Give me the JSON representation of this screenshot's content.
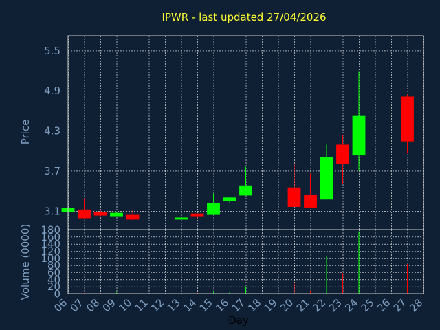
{
  "chart_data": {
    "type": "candlestick",
    "title": "IPWR - last updated 27/04/2026",
    "xlabel": "Day",
    "price_panel": {
      "ylabel": "Price",
      "ylim": [
        2.82,
        5.72
      ],
      "yticks": [
        "3.1",
        "3.7",
        "4.3",
        "4.9",
        "5.5"
      ],
      "grid": true
    },
    "volume_panel": {
      "ylabel": "Volume (0000)",
      "ylim": [
        0,
        180
      ],
      "yticks": [
        "0",
        "20",
        "40",
        "60",
        "80",
        "100",
        "120",
        "140",
        "160",
        "180"
      ],
      "grid": true
    },
    "x_range": [
      6,
      28
    ],
    "xticks": [
      "06",
      "07",
      "08",
      "09",
      "10",
      "11",
      "12",
      "13",
      "14",
      "15",
      "16",
      "17",
      "18",
      "19",
      "20",
      "21",
      "22",
      "23",
      "24",
      "25",
      "26",
      "27",
      "28"
    ],
    "colors": {
      "background": "#0f2035",
      "up": "#00ff00",
      "down": "#ff0000",
      "grid": "#ffffff",
      "title": "#ffff33",
      "ticks": "#7f9fc0"
    },
    "candles": [
      {
        "day": 6,
        "open": 3.08,
        "high": 3.14,
        "low": 3.08,
        "close": 3.14,
        "volume": 0
      },
      {
        "day": 7,
        "open": 3.12,
        "high": 3.28,
        "low": 2.98,
        "close": 2.99,
        "volume": 2
      },
      {
        "day": 8,
        "open": 3.08,
        "high": 3.12,
        "low": 3.0,
        "close": 3.03,
        "volume": 2
      },
      {
        "day": 9,
        "open": 3.02,
        "high": 3.08,
        "low": 3.02,
        "close": 3.07,
        "volume": 3
      },
      {
        "day": 10,
        "open": 3.04,
        "high": 3.12,
        "low": 2.96,
        "close": 2.97,
        "volume": 2
      },
      {
        "day": 13,
        "open": 2.97,
        "high": 3.08,
        "low": 2.97,
        "close": 3.0,
        "volume": 1
      },
      {
        "day": 14,
        "open": 3.06,
        "high": 3.06,
        "low": 2.98,
        "close": 3.02,
        "volume": 3
      },
      {
        "day": 15,
        "open": 3.04,
        "high": 3.36,
        "low": 3.04,
        "close": 3.22,
        "volume": 6
      },
      {
        "day": 16,
        "open": 3.25,
        "high": 3.31,
        "low": 3.22,
        "close": 3.3,
        "volume": 4
      },
      {
        "day": 17,
        "open": 3.33,
        "high": 3.76,
        "low": 3.33,
        "close": 3.48,
        "volume": 20
      },
      {
        "day": 20,
        "open": 3.45,
        "high": 3.81,
        "low": 3.16,
        "close": 3.16,
        "volume": 30
      },
      {
        "day": 21,
        "open": 3.34,
        "high": 3.66,
        "low": 3.15,
        "close": 3.15,
        "volume": 8
      },
      {
        "day": 22,
        "open": 3.27,
        "high": 4.09,
        "low": 3.27,
        "close": 3.9,
        "volume": 105
      },
      {
        "day": 23,
        "open": 4.09,
        "high": 4.23,
        "low": 3.5,
        "close": 3.8,
        "volume": 58
      },
      {
        "day": 24,
        "open": 3.93,
        "high": 5.19,
        "low": 3.7,
        "close": 4.52,
        "volume": 175
      },
      {
        "day": 27,
        "open": 4.81,
        "high": 4.84,
        "low": 3.96,
        "close": 4.14,
        "volume": 83
      }
    ]
  }
}
